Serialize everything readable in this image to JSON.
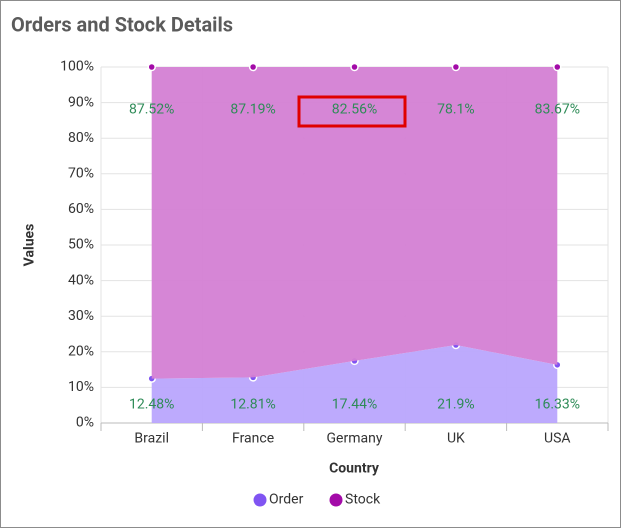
{
  "chart_data": {
    "type": "stacked-area-100",
    "title": "Orders and Stock Details",
    "x_label": "Country",
    "y_label": "Values",
    "categories": [
      "Brazil",
      "France",
      "Germany",
      "UK",
      "USA"
    ],
    "series": [
      {
        "name": "Order",
        "color": "#8054f2",
        "values": [
          12.48,
          12.81,
          17.44,
          21.9,
          16.33
        ],
        "value_labels": [
          "12.48%",
          "12.81%",
          "17.44%",
          "21.9%",
          "16.33%"
        ]
      },
      {
        "name": "Stock",
        "color": "#a30ba8",
        "values": [
          87.52,
          87.19,
          82.56,
          78.1,
          83.67
        ],
        "value_labels": [
          "87.52%",
          "87.19%",
          "82.56%",
          "78.1%",
          "83.67%"
        ]
      }
    ],
    "ylim": [
      0,
      100
    ],
    "yticks": [
      {
        "value": 0,
        "label": "0%"
      },
      {
        "value": 10,
        "label": "10%"
      },
      {
        "value": 20,
        "label": "20%"
      },
      {
        "value": 30,
        "label": "30%"
      },
      {
        "value": 40,
        "label": "40%"
      },
      {
        "value": 50,
        "label": "50%"
      },
      {
        "value": 60,
        "label": "60%"
      },
      {
        "value": 70,
        "label": "70%"
      },
      {
        "value": 80,
        "label": "80%"
      },
      {
        "value": 90,
        "label": "90%"
      },
      {
        "value": 100,
        "label": "100%"
      }
    ],
    "grid": true,
    "legend": "bottom"
  }
}
